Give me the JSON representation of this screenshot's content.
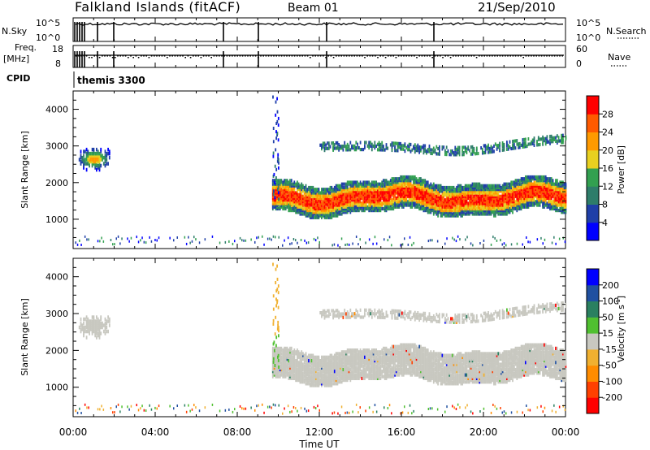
{
  "header": {
    "title": "Falkland Islands (fitACF)",
    "beam": "Beam 01",
    "date": "21/Sep/2010"
  },
  "status_panels": {
    "nsky_label": "N.Sky",
    "nsky_ticks": [
      "10^5",
      "10^0"
    ],
    "nsearch_label": "N.Search",
    "nsearch_ticks": [
      "10^5",
      "10^0"
    ],
    "freq_label_line1": "Freq.",
    "freq_label_line2": "[MHz]",
    "freq_ticks": [
      "18",
      "8"
    ],
    "nave_label": "Nave",
    "nave_ticks": [
      "60",
      "0"
    ],
    "cpid_label": "CPID",
    "cpid_value": "themis 3300"
  },
  "chart_data": [
    {
      "type": "heatmap",
      "name": "power",
      "ylabel": "Slant Range [km]",
      "ylim": [
        200,
        4500
      ],
      "yticks": [
        1000,
        2000,
        3000,
        4000
      ],
      "xlim_hours": [
        0,
        24
      ],
      "colorbar_label": "Power [dB]",
      "colorbar_ticks": [
        4,
        8,
        12,
        16,
        20,
        24,
        28
      ],
      "colorbar_range": [
        0,
        32
      ],
      "colors": [
        "#0000ff",
        "#1f3fa8",
        "#2e7d6a",
        "#32a050",
        "#e8d020",
        "#ff9a00",
        "#ff5a00",
        "#ff0000"
      ]
    },
    {
      "type": "heatmap",
      "name": "velocity",
      "ylabel": "Slant Range [km]",
      "ylim": [
        200,
        4500
      ],
      "yticks": [
        1000,
        2000,
        3000,
        4000
      ],
      "xlim_hours": [
        0,
        24
      ],
      "xlabel": "Time UT",
      "xticks": [
        "00:00",
        "04:00",
        "08:00",
        "12:00",
        "16:00",
        "20:00",
        "00:00"
      ],
      "colorbar_label": "Velocity [m s",
      "colorbar_sup": "-1",
      "colorbar_ticks": [
        "200",
        "100",
        "50",
        "15",
        "-15",
        "-50",
        "-100",
        "-200"
      ],
      "colors": [
        "#ff0000",
        "#ff4000",
        "#ff8c00",
        "#f0b030",
        "#c8c8c0",
        "#50c030",
        "#2a8060",
        "#2050a0",
        "#0000ff"
      ]
    }
  ]
}
